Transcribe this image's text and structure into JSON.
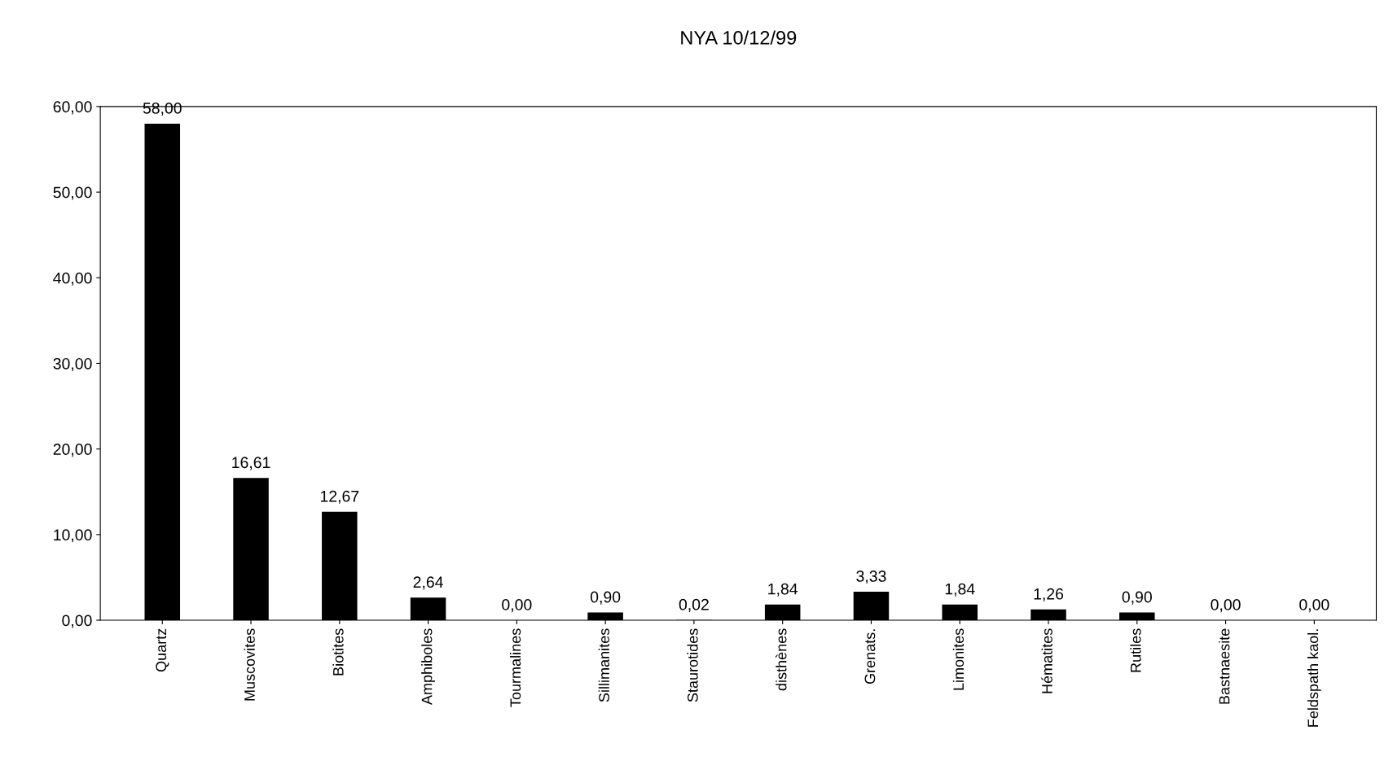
{
  "chart_data": {
    "type": "bar",
    "title": "NYA 10/12/99",
    "categories": [
      "Quartz",
      "Muscovites",
      "Biotites",
      "Amphiboles",
      "Tourmalines",
      "Sillimanites",
      "Staurotides",
      "disthènes",
      "Grenats.",
      "Limonites",
      "Hématites",
      "Rutiles",
      "Bastnaesite",
      "Feldspath kaol."
    ],
    "values": [
      58.0,
      16.61,
      12.67,
      2.64,
      0.0,
      0.9,
      0.02,
      1.84,
      3.33,
      1.84,
      1.26,
      0.9,
      0.0,
      0.0
    ],
    "value_labels": [
      "58,00",
      "16,61",
      "12,67",
      "2,64",
      "0,00",
      "0,90",
      "0,02",
      "1,84",
      "3,33",
      "1,84",
      "1,26",
      "0,90",
      "0,00",
      "0,00"
    ],
    "color": "#000000",
    "ylim": [
      0,
      60
    ],
    "yticks": [
      {
        "value": 0,
        "label": "0,00"
      },
      {
        "value": 10,
        "label": "10,00"
      },
      {
        "value": 20,
        "label": "20,00"
      },
      {
        "value": 30,
        "label": "30,00"
      },
      {
        "value": 40,
        "label": "40,00"
      },
      {
        "value": 50,
        "label": "50,00"
      },
      {
        "value": 60,
        "label": "60,00"
      }
    ],
    "grid": false
  }
}
